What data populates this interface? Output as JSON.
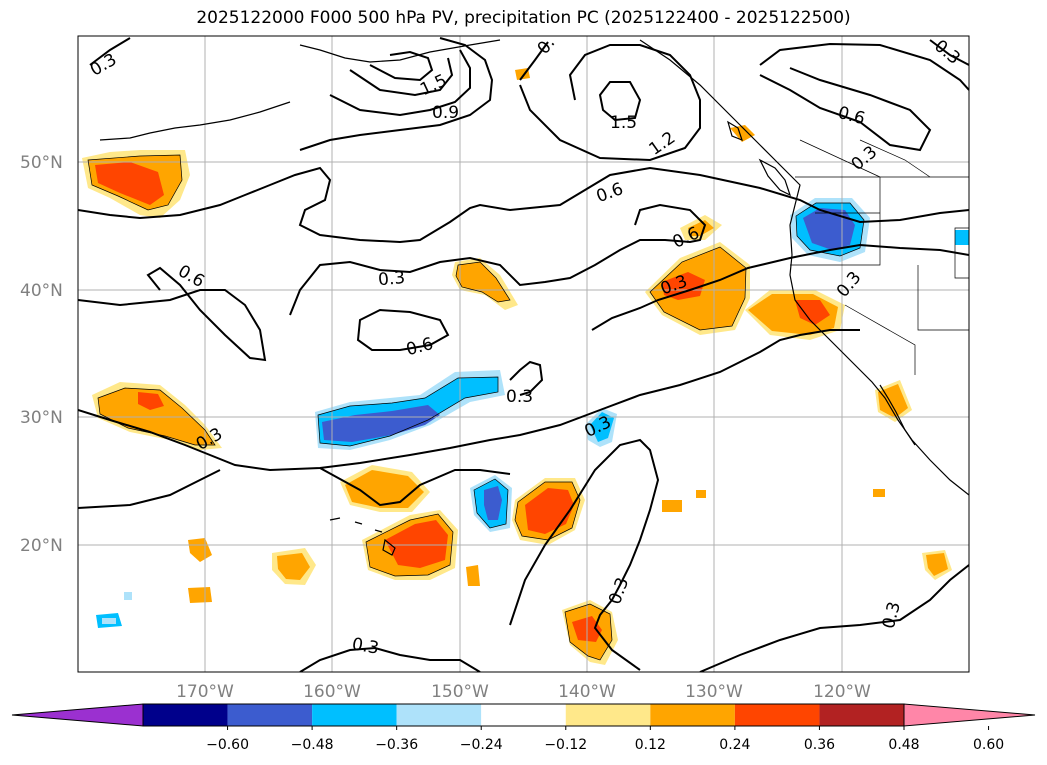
{
  "title": "2025122000 F000 500 hPa PV, precipitation PC (2025122400 - 2025122500)",
  "map": {
    "lat_labels": [
      "50°N",
      "40°N",
      "30°N",
      "20°N"
    ],
    "lon_labels": [
      "170°W",
      "160°W",
      "150°W",
      "140°W",
      "130°W",
      "120°W"
    ],
    "contour_labels": [
      "0.3",
      "1.5",
      "0.9",
      "0.",
      "1.5",
      "1.2",
      "0.6",
      "0.3",
      "0.6",
      "0.6",
      "0.3",
      "0.6",
      "0.3",
      "0.6",
      "0.3",
      "0.3",
      "0.3",
      "0.3",
      "0.3",
      "0.3",
      "0.3",
      "0.3"
    ]
  },
  "colorbar": {
    "ticks": [
      "−0.60",
      "−0.48",
      "−0.36",
      "−0.24",
      "−0.12",
      "0.12",
      "0.24",
      "0.36",
      "0.48",
      "0.60"
    ],
    "colors": [
      "#9b30d0",
      "#00008b",
      "#3c5ccf",
      "#00bfff",
      "#aee2fa",
      "#ffffff",
      "#ffe88a",
      "#ffa500",
      "#ff4500",
      "#b22222",
      "#ff86a8"
    ]
  }
}
